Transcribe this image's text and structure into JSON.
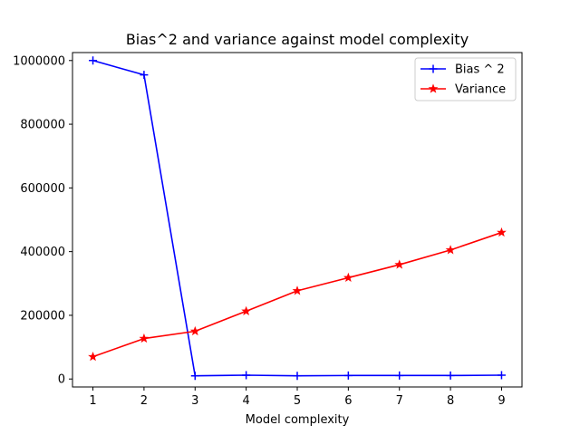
{
  "chart_data": {
    "type": "line",
    "title": "Bias^2 and variance against model complexity",
    "xlabel": "Model complexity",
    "ylabel": "",
    "x": [
      1,
      2,
      3,
      4,
      5,
      6,
      7,
      8,
      9
    ],
    "xticks": [
      "1",
      "2",
      "3",
      "4",
      "5",
      "6",
      "7",
      "8",
      "9"
    ],
    "xlim": [
      0.6,
      9.4
    ],
    "ylim": [
      -25000,
      1025000
    ],
    "yticks": [
      {
        "value": 0,
        "label": "0"
      },
      {
        "value": 200000,
        "label": "200000"
      },
      {
        "value": 400000,
        "label": "400000"
      },
      {
        "value": 600000,
        "label": "600000"
      },
      {
        "value": 800000,
        "label": "800000"
      },
      {
        "value": 1000000,
        "label": "1000000"
      }
    ],
    "grid": false,
    "legend_position": "top-right",
    "series": [
      {
        "name": "Bias ^ 2",
        "color": "#0000ff",
        "marker": "plus",
        "values": [
          1000000,
          955000,
          10000,
          12000,
          10000,
          11000,
          11000,
          11000,
          12000
        ]
      },
      {
        "name": "Variance",
        "color": "#ff0000",
        "marker": "star",
        "values": [
          70000,
          127000,
          150000,
          213000,
          277000,
          318000,
          359000,
          405000,
          460000
        ]
      }
    ]
  }
}
